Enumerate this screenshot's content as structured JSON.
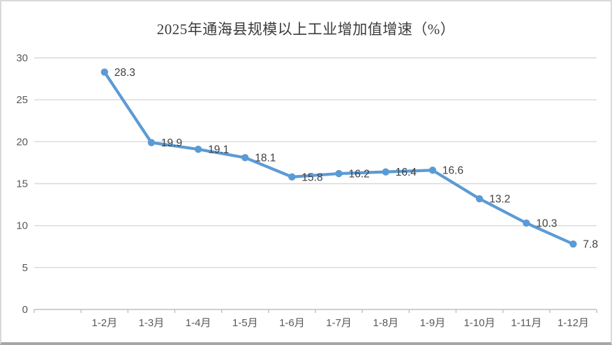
{
  "chart_data": {
    "type": "line",
    "title": "2025年通海县规模以上工业增加值增速（%）",
    "categories": [
      "1-2月",
      "1-3月",
      "1-4月",
      "1-5月",
      "1-6月",
      "1-7月",
      "1-8月",
      "1-9月",
      "1-10月",
      "1-11月",
      "1-12月"
    ],
    "values": [
      28.3,
      19.9,
      19.1,
      18.1,
      15.8,
      16.2,
      16.4,
      16.6,
      13.2,
      10.3,
      7.8
    ],
    "xlabel": "",
    "ylabel": "",
    "ylim": [
      0,
      30
    ],
    "yticks": [
      0,
      5,
      10,
      15,
      20,
      25,
      30
    ],
    "grid": true,
    "legend_position": "none",
    "data_labels_shown": true,
    "leading_empty_category_slot": true,
    "colors": {
      "line": "#5B9BD5",
      "marker": "#5B9BD5",
      "gridline": "#D9D9D9",
      "axis_line": "#BFBFBF",
      "axis_text": "#595959",
      "data_label_text": "#404040",
      "title_text": "#3B3B3B",
      "card_border": "#D9D9D9",
      "card_border_bottom": "#A6A6A6"
    }
  }
}
